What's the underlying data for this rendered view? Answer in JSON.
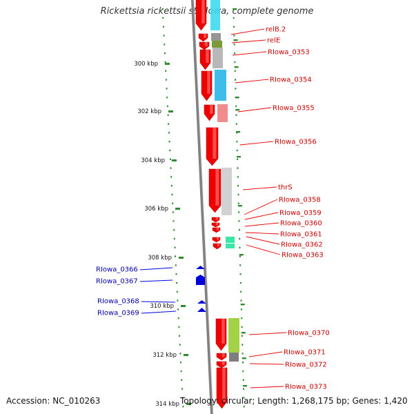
{
  "title": "Rickettsia rickettsii str. Iowa, complete genome",
  "footer": {
    "accession": "Accession: NC_010263",
    "summary": "Topology: circular; Length: 1,268,175 bp; Genes: 1,420"
  },
  "colors": {
    "backbone": "#808080",
    "forward_gene": "#ee0000",
    "reverse_gene": "#0000dd",
    "forward_label": "#cc0000",
    "reverse_label": "#0000aa",
    "tick": "#2e8b2e"
  },
  "scale_labels": [
    "300 kbp",
    "302 kbp",
    "304 kbp",
    "306 kbp",
    "308 kbp",
    "310 kbp",
    "312 kbp",
    "314 kbp"
  ],
  "forward_genes": [
    {
      "label": "relB.2",
      "cog": "#f5e6a0"
    },
    {
      "label": "relE",
      "cog": "#8a8a8a"
    },
    {
      "label": "RIowa_0353",
      "cog": "#6b8e23"
    },
    {
      "label": "RIowa_0354",
      "cog": "#b0b0b0"
    },
    {
      "label": "RIowa_0355",
      "cog": "#29b6e8"
    },
    {
      "label": "RIowa_0356",
      "cog": ""
    },
    {
      "label": "thrS",
      "cog": "#f08080"
    },
    {
      "label": "RIowa_0358",
      "cog": ""
    },
    {
      "label": "RIowa_0359",
      "cog": ""
    },
    {
      "label": "RIowa_0360",
      "cog": ""
    },
    {
      "label": "RIowa_0361",
      "cog": "#22e6a0"
    },
    {
      "label": "RIowa_0362",
      "cog": "#22e6a0"
    },
    {
      "label": "RIowa_0363",
      "cog": ""
    },
    {
      "label": "RIowa_0370",
      "cog": "#9acd32"
    },
    {
      "label": "RIowa_0371",
      "cog": "#707070"
    },
    {
      "label": "RIowa_0372",
      "cog": ""
    },
    {
      "label": "RIowa_0373",
      "cog": ""
    }
  ],
  "reverse_genes": [
    {
      "label": "RIowa_0366"
    },
    {
      "label": "RIowa_0367"
    },
    {
      "label": "RIowa_0368"
    },
    {
      "label": "RIowa_0369"
    }
  ]
}
